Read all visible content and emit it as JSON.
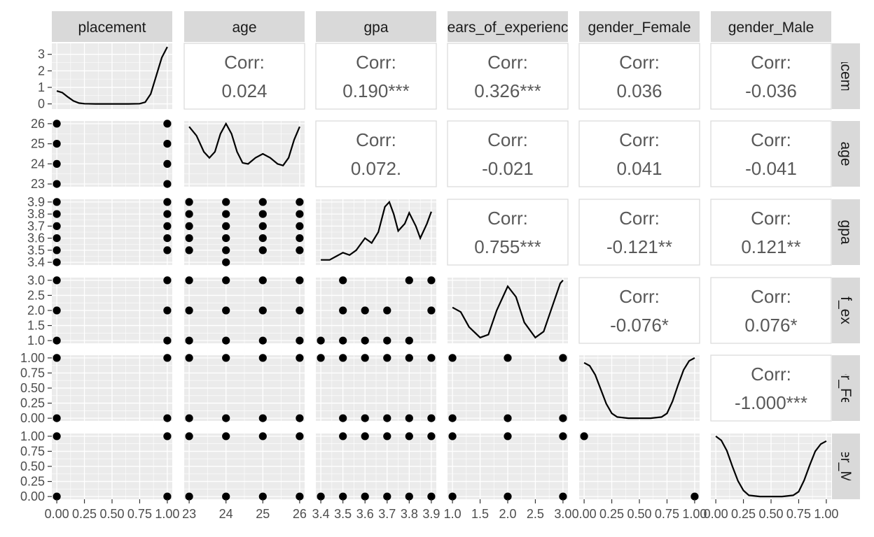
{
  "chart_data": {
    "type": "scatter",
    "title": "",
    "variables": [
      "placement",
      "age",
      "gpa",
      "years_of_experience",
      "gender_Female",
      "gender_Male"
    ],
    "column_strip_labels": [
      "placement",
      "age",
      "gpa",
      "ears_of_experienc",
      "gender_Female",
      "gender_Male"
    ],
    "row_strip_labels": [
      "placemen",
      "age",
      "gpa",
      "_of_expe",
      "der_Fem",
      "der_Ma"
    ],
    "axes": [
      {
        "name": "placement",
        "range": [
          0,
          1
        ],
        "ticks": [
          0,
          0.25,
          0.5,
          0.75,
          1
        ],
        "tick_labels": [
          "0.00",
          "0.25",
          "0.50",
          "0.75",
          "1.00"
        ]
      },
      {
        "name": "age",
        "range": [
          23,
          26
        ],
        "ticks": [
          23,
          24,
          25,
          26
        ],
        "tick_labels": [
          "23",
          "24",
          "25",
          "26"
        ]
      },
      {
        "name": "gpa",
        "range": [
          3.4,
          3.9
        ],
        "ticks": [
          3.4,
          3.5,
          3.6,
          3.7,
          3.8,
          3.9
        ],
        "tick_labels": [
          "3.4",
          "3.5",
          "3.6",
          "3.7",
          "3.8",
          "3.9"
        ]
      },
      {
        "name": "years_of_experience",
        "range": [
          1,
          3
        ],
        "ticks": [
          1,
          1.5,
          2,
          2.5,
          3
        ],
        "tick_labels": [
          "1.0",
          "1.5",
          "2.0",
          "2.5",
          "3.0"
        ]
      },
      {
        "name": "gender_Female",
        "range": [
          0,
          1
        ],
        "ticks": [
          0,
          0.25,
          0.5,
          0.75,
          1
        ],
        "tick_labels": [
          "0.00",
          "0.25",
          "0.50",
          "0.75",
          "1.00"
        ]
      },
      {
        "name": "gender_Male",
        "range": [
          0,
          1
        ],
        "ticks": [
          0,
          0.25,
          0.5,
          0.75,
          1
        ],
        "tick_labels": [
          "0.00",
          "0.25",
          "0.50",
          "0.75",
          "1.00"
        ]
      }
    ],
    "first_row_density_axis": {
      "range": [
        -0.15,
        3.5
      ],
      "ticks": [
        0,
        1,
        2,
        3
      ],
      "tick_labels": [
        "0",
        "1",
        "2",
        "3"
      ]
    },
    "correlations": [
      {
        "row": 0,
        "col": 1,
        "label": "Corr:",
        "value": "0.024"
      },
      {
        "row": 0,
        "col": 2,
        "label": "Corr:",
        "value": "0.190***"
      },
      {
        "row": 0,
        "col": 3,
        "label": "Corr:",
        "value": "0.326***"
      },
      {
        "row": 0,
        "col": 4,
        "label": "Corr:",
        "value": "0.036"
      },
      {
        "row": 0,
        "col": 5,
        "label": "Corr:",
        "value": "-0.036"
      },
      {
        "row": 1,
        "col": 2,
        "label": "Corr:",
        "value": "0.072."
      },
      {
        "row": 1,
        "col": 3,
        "label": "Corr:",
        "value": "-0.021"
      },
      {
        "row": 1,
        "col": 4,
        "label": "Corr:",
        "value": "0.041"
      },
      {
        "row": 1,
        "col": 5,
        "label": "Corr:",
        "value": "-0.041"
      },
      {
        "row": 2,
        "col": 3,
        "label": "Corr:",
        "value": "0.755***"
      },
      {
        "row": 2,
        "col": 4,
        "label": "Corr:",
        "value": "-0.121**"
      },
      {
        "row": 2,
        "col": 5,
        "label": "Corr:",
        "value": "0.121**"
      },
      {
        "row": 3,
        "col": 4,
        "label": "Corr:",
        "value": "-0.076*"
      },
      {
        "row": 3,
        "col": 5,
        "label": "Corr:",
        "value": "0.076*"
      },
      {
        "row": 4,
        "col": 5,
        "label": "Corr:",
        "value": "-1.000***"
      }
    ],
    "densities": [
      {
        "var": "placement",
        "points": [
          [
            0,
            0.78
          ],
          [
            0.05,
            0.68
          ],
          [
            0.1,
            0.42
          ],
          [
            0.15,
            0.18
          ],
          [
            0.2,
            0.05
          ],
          [
            0.25,
            0.01
          ],
          [
            0.35,
            0
          ],
          [
            0.5,
            0
          ],
          [
            0.65,
            0
          ],
          [
            0.75,
            0.01
          ],
          [
            0.8,
            0.1
          ],
          [
            0.85,
            0.6
          ],
          [
            0.9,
            1.7
          ],
          [
            0.95,
            2.8
          ],
          [
            1,
            3.45
          ]
        ]
      },
      {
        "var": "age",
        "points": [
          [
            23,
            25.85
          ],
          [
            23.2,
            25.4
          ],
          [
            23.4,
            24.6
          ],
          [
            23.55,
            24.3
          ],
          [
            23.7,
            24.6
          ],
          [
            23.85,
            25.5
          ],
          [
            24,
            26.0
          ],
          [
            24.15,
            25.5
          ],
          [
            24.3,
            24.6
          ],
          [
            24.45,
            24.05
          ],
          [
            24.6,
            24.0
          ],
          [
            24.8,
            24.3
          ],
          [
            25,
            24.5
          ],
          [
            25.2,
            24.3
          ],
          [
            25.4,
            24.0
          ],
          [
            25.55,
            23.92
          ],
          [
            25.7,
            24.3
          ],
          [
            25.85,
            25.2
          ],
          [
            26,
            25.85
          ]
        ]
      },
      {
        "var": "gpa",
        "points": [
          [
            3.4,
            3.42
          ],
          [
            3.44,
            3.42
          ],
          [
            3.47,
            3.45
          ],
          [
            3.5,
            3.48
          ],
          [
            3.53,
            3.46
          ],
          [
            3.56,
            3.5
          ],
          [
            3.6,
            3.6
          ],
          [
            3.63,
            3.56
          ],
          [
            3.66,
            3.65
          ],
          [
            3.69,
            3.86
          ],
          [
            3.71,
            3.9
          ],
          [
            3.73,
            3.8
          ],
          [
            3.75,
            3.66
          ],
          [
            3.78,
            3.72
          ],
          [
            3.8,
            3.81
          ],
          [
            3.83,
            3.7
          ],
          [
            3.85,
            3.6
          ],
          [
            3.88,
            3.72
          ],
          [
            3.9,
            3.82
          ]
        ]
      },
      {
        "var": "years_of_experience",
        "points": [
          [
            1,
            2.1
          ],
          [
            1.15,
            1.95
          ],
          [
            1.3,
            1.45
          ],
          [
            1.5,
            1.1
          ],
          [
            1.65,
            1.2
          ],
          [
            1.8,
            2.0
          ],
          [
            2,
            2.8
          ],
          [
            2.15,
            2.45
          ],
          [
            2.3,
            1.6
          ],
          [
            2.5,
            1.1
          ],
          [
            2.65,
            1.3
          ],
          [
            2.8,
            2.1
          ],
          [
            2.95,
            2.9
          ],
          [
            3,
            3.0
          ]
        ]
      },
      {
        "var": "gender_Female",
        "points": [
          [
            0,
            0.92
          ],
          [
            0.05,
            0.87
          ],
          [
            0.1,
            0.72
          ],
          [
            0.15,
            0.48
          ],
          [
            0.2,
            0.24
          ],
          [
            0.25,
            0.08
          ],
          [
            0.3,
            0.02
          ],
          [
            0.4,
            0
          ],
          [
            0.6,
            0
          ],
          [
            0.7,
            0.02
          ],
          [
            0.75,
            0.08
          ],
          [
            0.8,
            0.28
          ],
          [
            0.85,
            0.55
          ],
          [
            0.9,
            0.8
          ],
          [
            0.95,
            0.95
          ],
          [
            1,
            1.0
          ]
        ]
      },
      {
        "var": "gender_Male",
        "points": [
          [
            0,
            1.0
          ],
          [
            0.05,
            0.93
          ],
          [
            0.1,
            0.76
          ],
          [
            0.15,
            0.5
          ],
          [
            0.2,
            0.26
          ],
          [
            0.25,
            0.1
          ],
          [
            0.3,
            0.02
          ],
          [
            0.4,
            0
          ],
          [
            0.6,
            0
          ],
          [
            0.7,
            0.02
          ],
          [
            0.75,
            0.08
          ],
          [
            0.8,
            0.27
          ],
          [
            0.85,
            0.52
          ],
          [
            0.9,
            0.75
          ],
          [
            0.95,
            0.87
          ],
          [
            1,
            0.92
          ]
        ]
      }
    ],
    "scatter": [
      {
        "row": 1,
        "col": 0,
        "points": [
          [
            0,
            23
          ],
          [
            0,
            24
          ],
          [
            0,
            25
          ],
          [
            0,
            26
          ],
          [
            1,
            23
          ],
          [
            1,
            24
          ],
          [
            1,
            25
          ],
          [
            1,
            26
          ]
        ]
      },
      {
        "row": 2,
        "col": 0,
        "points": [
          [
            0,
            3.4
          ],
          [
            0,
            3.5
          ],
          [
            0,
            3.6
          ],
          [
            0,
            3.7
          ],
          [
            0,
            3.8
          ],
          [
            0,
            3.9
          ],
          [
            1,
            3.5
          ],
          [
            1,
            3.6
          ],
          [
            1,
            3.7
          ],
          [
            1,
            3.8
          ],
          [
            1,
            3.9
          ]
        ]
      },
      {
        "row": 2,
        "col": 1,
        "points": [
          [
            23,
            3.5
          ],
          [
            23,
            3.6
          ],
          [
            23,
            3.7
          ],
          [
            23,
            3.8
          ],
          [
            23,
            3.9
          ],
          [
            24,
            3.4
          ],
          [
            24,
            3.5
          ],
          [
            24,
            3.6
          ],
          [
            24,
            3.7
          ],
          [
            24,
            3.8
          ],
          [
            24,
            3.9
          ],
          [
            25,
            3.5
          ],
          [
            25,
            3.6
          ],
          [
            25,
            3.7
          ],
          [
            25,
            3.8
          ],
          [
            25,
            3.9
          ],
          [
            26,
            3.5
          ],
          [
            26,
            3.6
          ],
          [
            26,
            3.7
          ],
          [
            26,
            3.8
          ],
          [
            26,
            3.9
          ]
        ]
      },
      {
        "row": 3,
        "col": 0,
        "points": [
          [
            0,
            1
          ],
          [
            0,
            2
          ],
          [
            0,
            3
          ],
          [
            1,
            1
          ],
          [
            1,
            2
          ],
          [
            1,
            3
          ]
        ]
      },
      {
        "row": 3,
        "col": 1,
        "points": [
          [
            23,
            1
          ],
          [
            23,
            2
          ],
          [
            23,
            3
          ],
          [
            24,
            1
          ],
          [
            24,
            2
          ],
          [
            24,
            3
          ],
          [
            25,
            1
          ],
          [
            25,
            2
          ],
          [
            25,
            3
          ],
          [
            26,
            1
          ],
          [
            26,
            2
          ],
          [
            26,
            3
          ]
        ]
      },
      {
        "row": 3,
        "col": 2,
        "points": [
          [
            3.4,
            1
          ],
          [
            3.5,
            1
          ],
          [
            3.6,
            1
          ],
          [
            3.7,
            1
          ],
          [
            3.8,
            1
          ],
          [
            3.5,
            2
          ],
          [
            3.6,
            2
          ],
          [
            3.7,
            2
          ],
          [
            3.9,
            2
          ],
          [
            3.5,
            3
          ],
          [
            3.8,
            3
          ],
          [
            3.9,
            3
          ]
        ]
      },
      {
        "row": 4,
        "col": 0,
        "points": [
          [
            0,
            0
          ],
          [
            0,
            1
          ],
          [
            1,
            0
          ],
          [
            1,
            1
          ]
        ]
      },
      {
        "row": 4,
        "col": 1,
        "points": [
          [
            23,
            0
          ],
          [
            23,
            1
          ],
          [
            24,
            0
          ],
          [
            24,
            1
          ],
          [
            25,
            0
          ],
          [
            25,
            1
          ],
          [
            26,
            0
          ],
          [
            26,
            1
          ]
        ]
      },
      {
        "row": 4,
        "col": 2,
        "points": [
          [
            3.5,
            0
          ],
          [
            3.6,
            0
          ],
          [
            3.7,
            0
          ],
          [
            3.8,
            0
          ],
          [
            3.9,
            0
          ],
          [
            3.4,
            1
          ],
          [
            3.5,
            1
          ],
          [
            3.6,
            1
          ],
          [
            3.7,
            1
          ],
          [
            3.8,
            1
          ],
          [
            3.9,
            1
          ]
        ]
      },
      {
        "row": 4,
        "col": 3,
        "points": [
          [
            1,
            0
          ],
          [
            2,
            0
          ],
          [
            3,
            0
          ],
          [
            1,
            1
          ],
          [
            2,
            1
          ],
          [
            3,
            1
          ]
        ]
      },
      {
        "row": 5,
        "col": 0,
        "points": [
          [
            0,
            0
          ],
          [
            0,
            1
          ],
          [
            1,
            0
          ],
          [
            1,
            1
          ]
        ]
      },
      {
        "row": 5,
        "col": 1,
        "points": [
          [
            23,
            0
          ],
          [
            23,
            1
          ],
          [
            24,
            0
          ],
          [
            24,
            1
          ],
          [
            25,
            0
          ],
          [
            25,
            1
          ],
          [
            26,
            0
          ],
          [
            26,
            1
          ]
        ]
      },
      {
        "row": 5,
        "col": 2,
        "points": [
          [
            3.4,
            0
          ],
          [
            3.5,
            0
          ],
          [
            3.6,
            0
          ],
          [
            3.7,
            0
          ],
          [
            3.8,
            0
          ],
          [
            3.9,
            0
          ],
          [
            3.5,
            1
          ],
          [
            3.6,
            1
          ],
          [
            3.7,
            1
          ],
          [
            3.8,
            1
          ],
          [
            3.9,
            1
          ]
        ]
      },
      {
        "row": 5,
        "col": 3,
        "points": [
          [
            1,
            0
          ],
          [
            2,
            0
          ],
          [
            3,
            0
          ],
          [
            1,
            1
          ],
          [
            2,
            1
          ],
          [
            3,
            1
          ]
        ]
      },
      {
        "row": 5,
        "col": 4,
        "points": [
          [
            0,
            1
          ],
          [
            1,
            0
          ]
        ]
      }
    ]
  }
}
